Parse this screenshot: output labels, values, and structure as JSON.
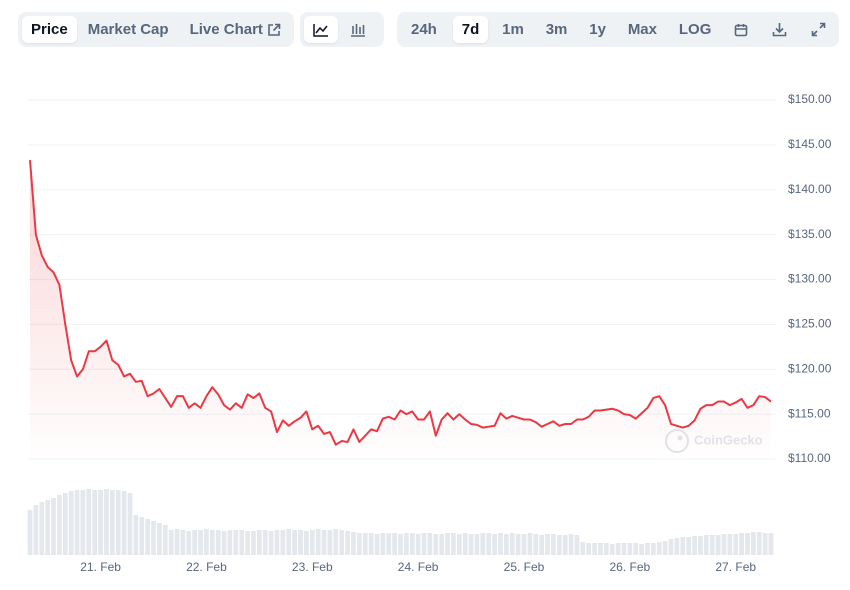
{
  "toolbar": {
    "view_tabs": [
      "Price",
      "Market Cap",
      "Live Chart"
    ],
    "ranges": [
      "24h",
      "7d",
      "1m",
      "3m",
      "1y",
      "Max",
      "LOG"
    ]
  },
  "chart_data": {
    "type": "line",
    "watermark": "CoinGecko",
    "grid": true,
    "ylim": [
      110,
      150
    ],
    "yticks": [
      {
        "value": 110,
        "label": "$110.00"
      },
      {
        "value": 115,
        "label": "$115.00"
      },
      {
        "value": 120,
        "label": "$120.00"
      },
      {
        "value": 125,
        "label": "$125.00"
      },
      {
        "value": 130,
        "label": "$130.00"
      },
      {
        "value": 135,
        "label": "$135.00"
      },
      {
        "value": 140,
        "label": "$140.00"
      },
      {
        "value": 145,
        "label": "$145.00"
      },
      {
        "value": 150,
        "label": "$150.00"
      }
    ],
    "xlim": [
      0,
      126
    ],
    "xticks": [
      {
        "value": 12,
        "label": "21. Feb"
      },
      {
        "value": 30,
        "label": "22. Feb"
      },
      {
        "value": 48,
        "label": "23. Feb"
      },
      {
        "value": 66,
        "label": "24. Feb"
      },
      {
        "value": 84,
        "label": "25. Feb"
      },
      {
        "value": 102,
        "label": "26. Feb"
      },
      {
        "value": 120,
        "label": "27. Feb"
      }
    ],
    "series": [
      {
        "type": "line",
        "color": "#ea3943",
        "values": [
          143.3,
          135.0,
          132.7,
          131.4,
          130.8,
          129.4,
          125,
          121,
          119.2,
          120,
          122,
          122,
          122.5,
          123.2,
          121,
          120.5,
          119.2,
          119.5,
          118.6,
          118.7,
          117,
          117.3,
          117.8,
          116.8,
          115.8,
          117,
          117,
          115.7,
          116.2,
          115.7,
          117,
          118,
          117.2,
          116,
          115.5,
          116.2,
          115.7,
          117.2,
          116.8,
          117.3,
          115.7,
          115.3,
          113,
          114.3,
          113.7,
          114.2,
          114.6,
          115.3,
          113.3,
          113.7,
          112.8,
          113,
          111.6,
          112,
          111.9,
          113.3,
          111.9,
          112.6,
          113.3,
          113.1,
          114.5,
          114.7,
          114.4,
          115.4,
          115,
          115.3,
          114.4,
          114.4,
          115.3,
          112.6,
          114.4,
          115.1,
          114.4,
          115,
          114.4,
          113.9,
          113.8,
          113.5,
          113.6,
          113.7,
          115.1,
          114.5,
          114.8,
          114.6,
          114.4,
          114.4,
          114.1,
          113.6,
          113.9,
          114.2,
          113.7,
          113.9,
          113.9,
          114.4,
          114.4,
          114.7,
          115.4,
          115.4,
          115.5,
          115.6,
          115.4,
          115,
          114.9,
          114.5,
          115.1,
          115.7,
          116.8,
          117,
          116,
          113.9,
          113.7,
          113.5,
          113.7,
          114.3,
          115.6,
          116,
          116,
          116.4,
          116.4,
          116,
          116.3,
          116.7,
          115.7,
          116,
          117,
          116.9,
          116.4
        ]
      },
      {
        "type": "bar",
        "color": "#e4e7eb",
        "values": [
          45,
          50,
          53,
          55,
          57,
          60,
          62,
          64,
          65,
          65,
          66,
          65,
          65,
          66,
          65,
          65,
          64,
          62,
          40,
          38,
          36,
          34,
          32,
          30,
          25,
          26,
          25,
          24,
          25,
          25,
          26,
          25,
          25,
          24,
          25,
          25,
          25,
          24,
          24,
          25,
          25,
          24,
          25,
          25,
          26,
          25,
          25,
          24,
          25,
          26,
          25,
          25,
          26,
          25,
          24,
          23,
          22,
          22,
          22,
          21,
          22,
          22,
          22,
          21,
          22,
          22,
          21,
          22,
          22,
          21,
          21,
          22,
          22,
          21,
          22,
          21,
          21,
          22,
          22,
          21,
          22,
          21,
          22,
          21,
          21,
          22,
          21,
          20,
          21,
          21,
          20,
          20,
          21,
          20,
          13,
          12,
          12,
          12,
          12,
          11,
          12,
          12,
          12,
          12,
          11,
          12,
          12,
          13,
          14,
          16,
          17,
          18,
          18,
          19,
          19,
          20,
          20,
          20,
          21,
          21,
          21,
          22,
          22,
          23,
          23,
          22,
          22
        ]
      }
    ]
  }
}
